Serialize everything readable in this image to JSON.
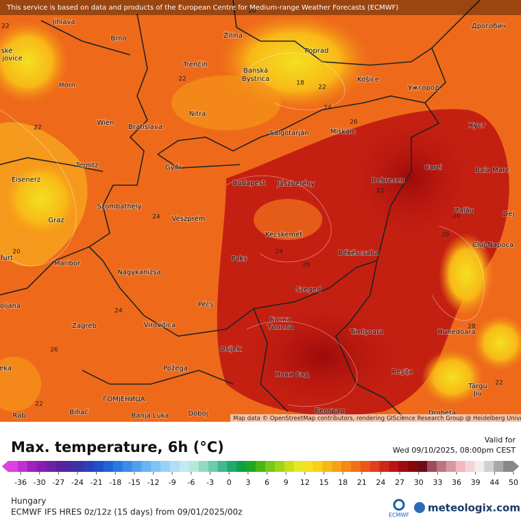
{
  "header": {
    "notice": "This service is based on data and products of the European Centre for Medium-range Weather Forecasts (ECMWF)"
  },
  "map": {
    "attribution": "Map data © OpenStreetMap contributors, rendering GIScience Research Group @ Heidelberg University",
    "cities": [
      "Jihlava",
      "Brno",
      "Žilina",
      "Poprad",
      "Дрогобич",
      "ské",
      "jovice",
      "Trenčín",
      "Banská",
      "Bystrica",
      "Košice",
      "Ужгород",
      "Horn",
      "Nitra",
      "Salgótarján",
      "Miskolc",
      "Хуст",
      "Wien",
      "Bratislava",
      "Ternitz",
      "Győr",
      "Carei",
      "Baia Mare",
      "Eisenerz",
      "Budapest",
      "Jászberény",
      "Debrecen",
      "Szombathely",
      "Graz",
      "Veszprém",
      "Zalău",
      "Dej",
      "Kecskemét",
      "Cluj-Napoca",
      "furt",
      "Maribor",
      "Paks",
      "Békéscsaba",
      "Nagykanizsa",
      "Szeged",
      "oljana",
      "Pécs",
      "Zagreb",
      "Virovitica",
      "Бачка",
      "Топола",
      "Timișoara",
      "Hunedoara",
      "Osijek",
      "eka",
      "Požega",
      "Reșița",
      "Нови Сад",
      "Târgu",
      "Jiu",
      "ГОМЈЕНИЦА",
      "Banja Luka",
      "Bihać",
      "Doboj",
      "Београд",
      "Drobeta",
      "Rab"
    ],
    "contour_labels": [
      "22",
      "20",
      "22",
      "18",
      "22",
      "24",
      "26",
      "22",
      "22",
      "24",
      "20",
      "26",
      "20",
      "24",
      "26",
      "24",
      "26",
      "28",
      "22",
      "22"
    ]
  },
  "legend": {
    "title": "Max. temperature, 6h (°C)",
    "valid_label": "Valid for",
    "valid_time": "Wed 09/10/2025, 08:00pm CEST",
    "ticks": [
      -36,
      -30,
      -27,
      -24,
      -21,
      -18,
      -15,
      -12,
      -9,
      -6,
      -3,
      0,
      3,
      6,
      9,
      12,
      15,
      18,
      21,
      24,
      27,
      30,
      33,
      36,
      39,
      44,
      50
    ],
    "colors": [
      "#e040e0",
      "#c030d0",
      "#a020c0",
      "#8a1cb0",
      "#7020a8",
      "#5a22a0",
      "#4a2aa0",
      "#3a34a8",
      "#2c40b8",
      "#2050c8",
      "#1e64d8",
      "#2878e0",
      "#3a8ce8",
      "#50a0ee",
      "#68b4f2",
      "#80c4f4",
      "#98d2f6",
      "#b0def6",
      "#c4e8f2",
      "#b4e8d8",
      "#90dcc0",
      "#6ccca8",
      "#40b890",
      "#20a870",
      "#10a040",
      "#20a820",
      "#48b818",
      "#78c818",
      "#a0d418",
      "#c8e018",
      "#e8e820",
      "#f4e020",
      "#f8d018",
      "#f8b818",
      "#f8a018",
      "#f48818",
      "#f07018",
      "#e85818",
      "#e04018",
      "#d02818",
      "#bc1414",
      "#a00c0c",
      "#860808",
      "#700c18",
      "#9c4c5c",
      "#bc7480",
      "#d898a0",
      "#f0b8c0",
      "#f4d4d8",
      "#f4ecee",
      "#d0d0d0",
      "#a8a8a8",
      "#888888"
    ]
  },
  "footer": {
    "region": "Hungary",
    "model": "ECMWF IFS HRES 0z/12z (15 days) from 09/01/2025/00z",
    "ecmwf": "ECMWF",
    "brand": "meteologix.com"
  }
}
